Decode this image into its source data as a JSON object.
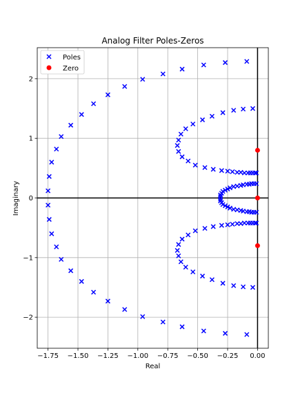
{
  "chart_data": {
    "type": "scatter",
    "title": "Analog Filter Poles-Zeros",
    "xlabel": "Real",
    "ylabel": "Imaginary",
    "xlim": [
      -1.84,
      0.09
    ],
    "ylim": [
      -2.52,
      2.52
    ],
    "xticks": [
      -1.75,
      -1.5,
      -1.25,
      -1.0,
      -0.75,
      -0.5,
      -0.25,
      0.0
    ],
    "xtick_labels": [
      "−1.75",
      "−1.50",
      "−1.25",
      "−1.00",
      "−0.75",
      "−0.50",
      "−0.25",
      "0.00"
    ],
    "yticks": [
      -2,
      -1,
      0,
      1,
      2
    ],
    "ytick_labels": [
      "−2",
      "−1",
      "0",
      "1",
      "2"
    ],
    "grid": true,
    "legend_position": "top-left",
    "series": [
      {
        "name": "Poles",
        "marker": "x",
        "color": "#0000ff",
        "points": [
          [
            -1.75,
            0.12
          ],
          [
            -1.74,
            0.36
          ],
          [
            -1.72,
            0.6
          ],
          [
            -1.68,
            0.82
          ],
          [
            -1.64,
            1.03
          ],
          [
            -1.56,
            1.22
          ],
          [
            -1.47,
            1.4
          ],
          [
            -1.37,
            1.58
          ],
          [
            -1.25,
            1.73
          ],
          [
            -1.11,
            1.87
          ],
          [
            -0.96,
            1.99
          ],
          [
            -0.79,
            2.08
          ],
          [
            -0.63,
            2.16
          ],
          [
            -0.45,
            2.23
          ],
          [
            -0.27,
            2.27
          ],
          [
            -0.09,
            2.29
          ],
          [
            -1.75,
            -0.12
          ],
          [
            -1.74,
            -0.36
          ],
          [
            -1.72,
            -0.6
          ],
          [
            -1.68,
            -0.82
          ],
          [
            -1.64,
            -1.03
          ],
          [
            -1.56,
            -1.22
          ],
          [
            -1.47,
            -1.4
          ],
          [
            -1.37,
            -1.58
          ],
          [
            -1.25,
            -1.73
          ],
          [
            -1.11,
            -1.87
          ],
          [
            -0.96,
            -1.99
          ],
          [
            -0.79,
            -2.08
          ],
          [
            -0.63,
            -2.16
          ],
          [
            -0.45,
            -2.23
          ],
          [
            -0.27,
            -2.27
          ],
          [
            -0.09,
            -2.29
          ],
          [
            -0.04,
            1.5
          ],
          [
            -0.12,
            1.49
          ],
          [
            -0.2,
            1.47
          ],
          [
            -0.29,
            1.43
          ],
          [
            -0.38,
            1.37
          ],
          [
            -0.46,
            1.31
          ],
          [
            -0.54,
            1.24
          ],
          [
            -0.6,
            1.16
          ],
          [
            -0.64,
            1.07
          ],
          [
            -0.66,
            0.97
          ],
          [
            -0.67,
            0.88
          ],
          [
            -0.66,
            0.78
          ],
          [
            -0.63,
            0.69
          ],
          [
            -0.58,
            0.62
          ],
          [
            -0.52,
            0.55
          ],
          [
            -0.44,
            0.51
          ],
          [
            -0.37,
            0.48
          ],
          [
            -0.3,
            0.46
          ],
          [
            -0.04,
            -1.5
          ],
          [
            -0.12,
            -1.49
          ],
          [
            -0.2,
            -1.47
          ],
          [
            -0.29,
            -1.43
          ],
          [
            -0.38,
            -1.37
          ],
          [
            -0.46,
            -1.31
          ],
          [
            -0.54,
            -1.24
          ],
          [
            -0.6,
            -1.16
          ],
          [
            -0.64,
            -1.07
          ],
          [
            -0.66,
            -0.97
          ],
          [
            -0.67,
            -0.88
          ],
          [
            -0.66,
            -0.78
          ],
          [
            -0.63,
            -0.69
          ],
          [
            -0.58,
            -0.62
          ],
          [
            -0.52,
            -0.55
          ],
          [
            -0.44,
            -0.51
          ],
          [
            -0.37,
            -0.48
          ],
          [
            -0.3,
            -0.46
          ],
          [
            -0.25,
            0.45
          ],
          [
            -0.21,
            0.44
          ],
          [
            -0.17,
            0.43
          ],
          [
            -0.14,
            0.43
          ],
          [
            -0.11,
            0.42
          ],
          [
            -0.08,
            0.42
          ],
          [
            -0.06,
            0.42
          ],
          [
            -0.04,
            0.42
          ],
          [
            -0.02,
            0.42
          ],
          [
            -0.01,
            0.42
          ],
          [
            -0.25,
            -0.45
          ],
          [
            -0.21,
            -0.44
          ],
          [
            -0.17,
            -0.43
          ],
          [
            -0.14,
            -0.43
          ],
          [
            -0.11,
            -0.42
          ],
          [
            -0.08,
            -0.42
          ],
          [
            -0.06,
            -0.42
          ],
          [
            -0.04,
            -0.42
          ],
          [
            -0.02,
            -0.42
          ],
          [
            -0.01,
            -0.42
          ],
          [
            -0.31,
            0.02
          ],
          [
            -0.31,
            0.05
          ],
          [
            -0.3,
            0.08
          ],
          [
            -0.29,
            0.11
          ],
          [
            -0.27,
            0.13
          ],
          [
            -0.25,
            0.15
          ],
          [
            -0.23,
            0.17
          ],
          [
            -0.2,
            0.19
          ],
          [
            -0.17,
            0.2
          ],
          [
            -0.14,
            0.21
          ],
          [
            -0.12,
            0.22
          ],
          [
            -0.09,
            0.23
          ],
          [
            -0.07,
            0.23
          ],
          [
            -0.05,
            0.24
          ],
          [
            -0.03,
            0.24
          ],
          [
            -0.01,
            0.24
          ],
          [
            -0.31,
            -0.02
          ],
          [
            -0.31,
            -0.05
          ],
          [
            -0.3,
            -0.08
          ],
          [
            -0.29,
            -0.11
          ],
          [
            -0.27,
            -0.13
          ],
          [
            -0.25,
            -0.15
          ],
          [
            -0.23,
            -0.17
          ],
          [
            -0.2,
            -0.19
          ],
          [
            -0.17,
            -0.2
          ],
          [
            -0.14,
            -0.21
          ],
          [
            -0.12,
            -0.22
          ],
          [
            -0.09,
            -0.23
          ],
          [
            -0.07,
            -0.23
          ],
          [
            -0.05,
            -0.24
          ],
          [
            -0.03,
            -0.24
          ],
          [
            -0.01,
            -0.24
          ]
        ]
      },
      {
        "name": "Zero",
        "marker": "o",
        "color": "#ff0000",
        "points": [
          [
            0.0,
            0.8
          ],
          [
            0.0,
            0.0
          ],
          [
            0.0,
            -0.8
          ]
        ]
      }
    ]
  }
}
